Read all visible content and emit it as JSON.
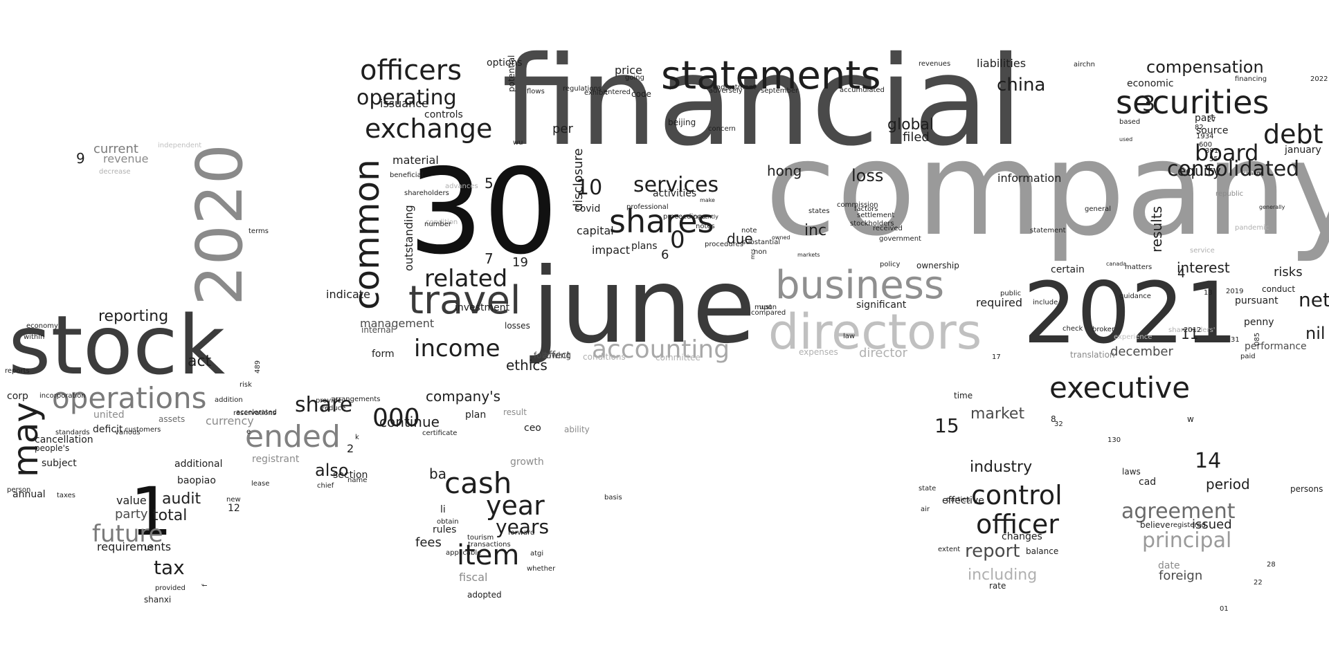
{
  "words": [
    {
      "text": "financial",
      "color": "#4a4a4a"
    },
    {
      "text": "company",
      "color": "#9a9a9a"
    },
    {
      "text": "june",
      "color": "#3a3a3a"
    },
    {
      "text": "30",
      "color": "#111111"
    },
    {
      "text": "2021",
      "color": "#333333"
    },
    {
      "text": "stock",
      "color": "#3c3c3c"
    },
    {
      "text": "2020",
      "color": "#8a8a8a"
    },
    {
      "text": "directors",
      "color": "#c0c0c0"
    },
    {
      "text": "business",
      "color": "#8f8f8f"
    },
    {
      "text": "statements",
      "color": "#1e1e1e"
    },
    {
      "text": "travel",
      "color": "#3a3a3a"
    },
    {
      "text": "securities",
      "color": "#1e1e1e"
    },
    {
      "text": "officers",
      "color": "#1e1e1e"
    },
    {
      "text": "common",
      "color": "#1e1e1e"
    },
    {
      "text": "ended",
      "color": "#808080"
    },
    {
      "text": "operations",
      "color": "#7a7a7a"
    },
    {
      "text": "may",
      "color": "#1e1e1e"
    },
    {
      "text": "1",
      "color": "#111111"
    },
    {
      "text": "executive",
      "color": "#1e1e1e"
    },
    {
      "text": "shares",
      "color": "#1e1e1e"
    },
    {
      "text": "exchange",
      "color": "#1e1e1e"
    },
    {
      "text": "debt",
      "color": "#1e1e1e"
    },
    {
      "text": "consolidated",
      "color": "#1e1e1e"
    },
    {
      "text": "board",
      "color": "#1e1e1e"
    },
    {
      "text": "accounting",
      "color": "#a8a8a8"
    },
    {
      "text": "income",
      "color": "#1e1e1e"
    },
    {
      "text": "related",
      "color": "#1e1e1e"
    },
    {
      "text": "operating",
      "color": "#1e1e1e"
    },
    {
      "text": "services",
      "color": "#1e1e1e"
    },
    {
      "text": "cash",
      "color": "#1e1e1e"
    },
    {
      "text": "year",
      "color": "#1e1e1e"
    },
    {
      "text": "item",
      "color": "#1e1e1e"
    },
    {
      "text": "officer",
      "color": "#1e1e1e"
    },
    {
      "text": "control",
      "color": "#1e1e1e"
    },
    {
      "text": "agreement",
      "color": "#6a6a6a"
    },
    {
      "text": "principal",
      "color": "#9a9a9a"
    },
    {
      "text": "000",
      "color": "#1e1e1e"
    },
    {
      "text": "future",
      "color": "#7a7a7a"
    },
    {
      "text": "compensation",
      "color": "#1e1e1e"
    },
    {
      "text": "china",
      "color": "#1e1e1e"
    },
    {
      "text": "net",
      "color": "#1e1e1e"
    },
    {
      "text": "nil",
      "color": "#1e1e1e"
    },
    {
      "text": "3",
      "color": "#1e1e1e"
    },
    {
      "text": "0",
      "color": "#1e1e1e"
    },
    {
      "text": "10",
      "color": "#1e1e1e"
    },
    {
      "text": "reporting",
      "color": "#1e1e1e"
    },
    {
      "text": "share",
      "color": "#1e1e1e"
    },
    {
      "text": "continue",
      "color": "#1e1e1e"
    },
    {
      "text": "company's",
      "color": "#1e1e1e"
    },
    {
      "text": "years",
      "color": "#1e1e1e"
    },
    {
      "text": "market",
      "color": "#4a4a4a"
    },
    {
      "text": "15",
      "color": "#1e1e1e"
    },
    {
      "text": "14",
      "color": "#1e1e1e"
    },
    {
      "text": "industry",
      "color": "#1e1e1e"
    },
    {
      "text": "report",
      "color": "#4a4a4a"
    },
    {
      "text": "including",
      "color": "#b0b0b0"
    },
    {
      "text": "tax",
      "color": "#1e1e1e"
    },
    {
      "text": "audit",
      "color": "#1e1e1e"
    },
    {
      "text": "total",
      "color": "#1e1e1e"
    },
    {
      "text": "act",
      "color": "#1e1e1e"
    },
    {
      "text": "global",
      "color": "#1e1e1e"
    },
    {
      "text": "loss",
      "color": "#1e1e1e"
    },
    {
      "text": "equity",
      "color": "#1e1e1e"
    },
    {
      "text": "interest",
      "color": "#1e1e1e"
    },
    {
      "text": "results",
      "color": "#1e1e1e"
    },
    {
      "text": "inc",
      "color": "#1e1e1e"
    },
    {
      "text": "hong",
      "color": "#1e1e1e"
    },
    {
      "text": "filed",
      "color": "#1e1e1e"
    },
    {
      "text": "information",
      "color": "#1e1e1e"
    },
    {
      "text": "december",
      "color": "#4a4a4a"
    },
    {
      "text": "risks",
      "color": "#1e1e1e"
    },
    {
      "text": "period",
      "color": "#1e1e1e"
    },
    {
      "text": "issued",
      "color": "#1e1e1e"
    },
    {
      "text": "foreign",
      "color": "#4a4a4a"
    },
    {
      "text": "current",
      "color": "#7a7a7a"
    },
    {
      "text": "revenue",
      "color": "#8a8a8a"
    },
    {
      "text": "9",
      "color": "#1e1e1e"
    },
    {
      "text": "management",
      "color": "#4a4a4a"
    },
    {
      "text": "disclosure",
      "color": "#1e1e1e"
    },
    {
      "text": "outstanding",
      "color": "#1e1e1e"
    },
    {
      "text": "material",
      "color": "#1e1e1e"
    },
    {
      "text": "price",
      "color": "#1e1e1e"
    },
    {
      "text": "options",
      "color": "#1e1e1e"
    },
    {
      "text": "liabilities",
      "color": "#1e1e1e"
    },
    {
      "text": "economic",
      "color": "#1e1e1e"
    },
    {
      "text": "part",
      "color": "#1e1e1e"
    },
    {
      "text": "source",
      "color": "#1e1e1e"
    },
    {
      "text": "january",
      "color": "#1e1e1e"
    },
    {
      "text": "issuance",
      "color": "#1e1e1e"
    },
    {
      "text": "controls",
      "color": "#1e1e1e"
    },
    {
      "text": "per",
      "color": "#1e1e1e"
    },
    {
      "text": "capital",
      "color": "#1e1e1e"
    },
    {
      "text": "impact",
      "color": "#1e1e1e"
    },
    {
      "text": "due",
      "color": "#1e1e1e"
    },
    {
      "text": "activities",
      "color": "#1e1e1e"
    },
    {
      "text": "covid",
      "color": "#1e1e1e"
    },
    {
      "text": "certain",
      "color": "#1e1e1e"
    },
    {
      "text": "required",
      "color": "#1e1e1e"
    },
    {
      "text": "significant",
      "color": "#1e1e1e"
    },
    {
      "text": "pursuant",
      "color": "#1e1e1e"
    },
    {
      "text": "penny",
      "color": "#1e1e1e"
    },
    {
      "text": "performance",
      "color": "#4a4a4a"
    },
    {
      "text": "conduct",
      "color": "#1e1e1e"
    },
    {
      "text": "director",
      "color": "#b0b0b0"
    },
    {
      "text": "expenses",
      "color": "#b0b0b0"
    },
    {
      "text": "committee",
      "color": "#b0b0b0"
    },
    {
      "text": "conditions",
      "color": "#b0b0b0"
    },
    {
      "text": "following",
      "color": "#4a4a4a"
    },
    {
      "text": "affect",
      "color": "#4a4a4a"
    },
    {
      "text": "form",
      "color": "#1e1e1e"
    },
    {
      "text": "investment",
      "color": "#1e1e1e"
    },
    {
      "text": "losses",
      "color": "#1e1e1e"
    },
    {
      "text": "internal",
      "color": "#4a4a4a"
    },
    {
      "text": "united",
      "color": "#8a8a8a"
    },
    {
      "text": "assets",
      "color": "#6a6a6a"
    },
    {
      "text": "currency",
      "color": "#8a8a8a"
    },
    {
      "text": "registrant",
      "color": "#8a8a8a"
    },
    {
      "text": "section",
      "color": "#1e1e1e"
    },
    {
      "text": "2",
      "color": "#1e1e1e"
    },
    {
      "text": "also",
      "color": "#1e1e1e"
    },
    {
      "text": "corp",
      "color": "#1e1e1e"
    },
    {
      "text": "deficit",
      "color": "#1e1e1e"
    },
    {
      "text": "cancellation",
      "color": "#1e1e1e"
    },
    {
      "text": "people's",
      "color": "#1e1e1e"
    },
    {
      "text": "subject",
      "color": "#1e1e1e"
    },
    {
      "text": "annual",
      "color": "#1e1e1e"
    },
    {
      "text": "additional",
      "color": "#1e1e1e"
    },
    {
      "text": "baopiao",
      "color": "#1e1e1e"
    },
    {
      "text": "value",
      "color": "#1e1e1e"
    },
    {
      "text": "12",
      "color": "#1e1e1e"
    },
    {
      "text": "party",
      "color": "#4a4a4a"
    },
    {
      "text": "requirements",
      "color": "#1e1e1e"
    },
    {
      "text": "us",
      "color": "#1e1e1e"
    },
    {
      "text": "ba",
      "color": "#1e1e1e"
    },
    {
      "text": "fees",
      "color": "#1e1e1e"
    },
    {
      "text": "rules",
      "color": "#1e1e1e"
    },
    {
      "text": "li",
      "color": "#1e1e1e"
    },
    {
      "text": "growth",
      "color": "#8a8a8a"
    },
    {
      "text": "plan",
      "color": "#1e1e1e"
    },
    {
      "text": "result",
      "color": "#8a8a8a"
    },
    {
      "text": "ceo",
      "color": "#1e1e1e"
    },
    {
      "text": "ability",
      "color": "#8a8a8a"
    },
    {
      "text": "fiscal",
      "color": "#8a8a8a"
    },
    {
      "text": "adopted",
      "color": "#1e1e1e"
    },
    {
      "text": "time",
      "color": "#1e1e1e"
    },
    {
      "text": "effective",
      "color": "#1e1e1e"
    },
    {
      "text": "changes",
      "color": "#1e1e1e"
    },
    {
      "text": "balance",
      "color": "#1e1e1e"
    },
    {
      "text": "rate",
      "color": "#1e1e1e"
    },
    {
      "text": "cad",
      "color": "#1e1e1e"
    },
    {
      "text": "laws",
      "color": "#1e1e1e"
    },
    {
      "text": "persons",
      "color": "#1e1e1e"
    },
    {
      "text": "believe",
      "color": "#1e1e1e"
    },
    {
      "text": "date",
      "color": "#8a8a8a"
    },
    {
      "text": "w",
      "color": "#1e1e1e"
    },
    {
      "text": "8",
      "color": "#1e1e1e"
    },
    {
      "text": "11",
      "color": "#1e1e1e"
    },
    {
      "text": "4",
      "color": "#1e1e1e"
    },
    {
      "text": "5",
      "color": "#1e1e1e"
    },
    {
      "text": "7",
      "color": "#1e1e1e"
    },
    {
      "text": "19",
      "color": "#1e1e1e"
    },
    {
      "text": "6",
      "color": "#1e1e1e"
    },
    {
      "text": "ethics",
      "color": "#1e1e1e"
    },
    {
      "text": "independent",
      "color": "#c0c0c0"
    },
    {
      "text": "decrease",
      "color": "#b0b0b0"
    },
    {
      "text": "shanxi",
      "color": "#1e1e1e"
    },
    {
      "text": "republic",
      "color": "#8a8a8a"
    },
    {
      "text": "translation",
      "color": "#8a8a8a"
    },
    {
      "text": "paid",
      "color": "#1e1e1e"
    },
    {
      "text": "code",
      "color": "#1e1e1e"
    },
    {
      "text": "beijing",
      "color": "#1e1e1e"
    },
    {
      "text": "concern",
      "color": "#1e1e1e"
    },
    {
      "text": "adjustment",
      "color": "#1e1e1e"
    },
    {
      "text": "september",
      "color": "#1e1e1e"
    },
    {
      "text": "accumulated",
      "color": "#1e1e1e"
    },
    {
      "text": "revenues",
      "color": "#1e1e1e"
    },
    {
      "text": "airchn",
      "color": "#1e1e1e"
    },
    {
      "text": "going",
      "color": "#1e1e1e"
    },
    {
      "text": "potential",
      "color": "#1e1e1e"
    },
    {
      "text": "flows",
      "color": "#1e1e1e"
    },
    {
      "text": "regulations",
      "color": "#1e1e1e"
    },
    {
      "text": "exhibit",
      "color": "#1e1e1e"
    },
    {
      "text": "entered",
      "color": "#1e1e1e"
    },
    {
      "text": "adversely",
      "color": "#1e1e1e"
    },
    {
      "text": "financing",
      "color": "#1e1e1e"
    },
    {
      "text": "based",
      "color": "#1e1e1e"
    },
    {
      "text": "used",
      "color": "#1e1e1e"
    },
    {
      "text": "change",
      "color": "#1e1e1e"
    },
    {
      "text": "generally",
      "color": "#1e1e1e"
    },
    {
      "text": "general",
      "color": "#1e1e1e"
    },
    {
      "text": "matters",
      "color": "#1e1e1e"
    },
    {
      "text": "canada",
      "color": "#1e1e1e"
    },
    {
      "text": "ownership",
      "color": "#1e1e1e"
    },
    {
      "text": "factors",
      "color": "#1e1e1e"
    },
    {
      "text": "commission",
      "color": "#1e1e1e"
    },
    {
      "text": "states",
      "color": "#1e1e1e"
    },
    {
      "text": "procedures",
      "color": "#1e1e1e"
    },
    {
      "text": "non",
      "color": "#1e1e1e"
    },
    {
      "text": "stockholders",
      "color": "#1e1e1e"
    },
    {
      "text": "mrs",
      "color": "#1e1e1e"
    },
    {
      "text": "make",
      "color": "#1e1e1e"
    },
    {
      "text": "currently",
      "color": "#1e1e1e"
    },
    {
      "text": "markets",
      "color": "#1e1e1e"
    },
    {
      "text": "owned",
      "color": "#1e1e1e"
    },
    {
      "text": "wu",
      "color": "#1e1e1e"
    },
    {
      "text": "beneficial",
      "color": "#1e1e1e"
    },
    {
      "text": "shareholders",
      "color": "#1e1e1e"
    },
    {
      "text": "condition",
      "color": "#b0b0b0"
    },
    {
      "text": "advances",
      "color": "#b0b0b0"
    },
    {
      "text": "number",
      "color": "#1e1e1e"
    },
    {
      "text": "terms",
      "color": "#1e1e1e"
    },
    {
      "text": "addition",
      "color": "#1e1e1e"
    },
    {
      "text": "incorporation",
      "color": "#1e1e1e"
    },
    {
      "text": "economy",
      "color": "#1e1e1e"
    },
    {
      "text": "within",
      "color": "#1e1e1e"
    },
    {
      "text": "arrangements",
      "color": "#1e1e1e"
    },
    {
      "text": "name",
      "color": "#1e1e1e"
    },
    {
      "text": "lease",
      "color": "#1e1e1e"
    },
    {
      "text": "chief",
      "color": "#1e1e1e"
    },
    {
      "text": "air",
      "color": "#1e1e1e"
    },
    {
      "text": "state",
      "color": "#1e1e1e"
    },
    {
      "text": "extent",
      "color": "#1e1e1e"
    },
    {
      "text": "parties",
      "color": "#1e1e1e"
    },
    {
      "text": "registered",
      "color": "#1e1e1e"
    },
    {
      "text": "applicable",
      "color": "#1e1e1e"
    },
    {
      "text": "tourism",
      "color": "#1e1e1e"
    },
    {
      "text": "transactions",
      "color": "#1e1e1e"
    },
    {
      "text": "obtain",
      "color": "#1e1e1e"
    },
    {
      "text": "atgi",
      "color": "#1e1e1e"
    },
    {
      "text": "forward",
      "color": "#1e1e1e"
    },
    {
      "text": "whether",
      "color": "#1e1e1e"
    },
    {
      "text": "basis",
      "color": "#1e1e1e"
    },
    {
      "text": "certificate",
      "color": "#1e1e1e"
    },
    {
      "text": "k",
      "color": "#1e1e1e"
    },
    {
      "text": "reduce",
      "color": "#1e1e1e"
    },
    {
      "text": "provide",
      "color": "#1e1e1e"
    },
    {
      "text": "risk",
      "color": "#1e1e1e"
    },
    {
      "text": "accelerated",
      "color": "#1e1e1e"
    },
    {
      "text": "reservations",
      "color": "#1e1e1e"
    },
    {
      "text": "e",
      "color": "#1e1e1e"
    },
    {
      "text": "f",
      "color": "#1e1e1e"
    },
    {
      "text": "new",
      "color": "#1e1e1e"
    },
    {
      "text": "provided",
      "color": "#1e1e1e"
    },
    {
      "text": "taxes",
      "color": "#1e1e1e"
    },
    {
      "text": "person",
      "color": "#1e1e1e"
    },
    {
      "text": "reports",
      "color": "#1e1e1e"
    },
    {
      "text": "various",
      "color": "#1e1e1e"
    },
    {
      "text": "customers",
      "color": "#1e1e1e"
    },
    {
      "text": "standards",
      "color": "#1e1e1e"
    },
    {
      "text": "plans",
      "color": "#1e1e1e"
    },
    {
      "text": "indicate",
      "color": "#1e1e1e"
    },
    {
      "text": "professional",
      "color": "#1e1e1e"
    },
    {
      "text": "proceedings",
      "color": "#1e1e1e"
    },
    {
      "text": "notes",
      "color": "#1e1e1e"
    },
    {
      "text": "note",
      "color": "#1e1e1e"
    },
    {
      "text": "substantial",
      "color": "#1e1e1e"
    },
    {
      "text": "compared",
      "color": "#1e1e1e"
    },
    {
      "text": "upon",
      "color": "#1e1e1e"
    },
    {
      "text": "must",
      "color": "#1e1e1e"
    },
    {
      "text": "law",
      "color": "#1e1e1e"
    },
    {
      "text": "government",
      "color": "#1e1e1e"
    },
    {
      "text": "policy",
      "color": "#1e1e1e"
    },
    {
      "text": "received",
      "color": "#1e1e1e"
    },
    {
      "text": "settlement",
      "color": "#1e1e1e"
    },
    {
      "text": "statement",
      "color": "#1e1e1e"
    },
    {
      "text": "include",
      "color": "#1e1e1e"
    },
    {
      "text": "public",
      "color": "#1e1e1e"
    },
    {
      "text": "check",
      "color": "#1e1e1e"
    },
    {
      "text": "broker",
      "color": "#1e1e1e"
    },
    {
      "text": "guidance",
      "color": "#1e1e1e"
    },
    {
      "text": "pandemic",
      "color": "#b0b0b0"
    },
    {
      "text": "service",
      "color": "#b0b0b0"
    },
    {
      "text": "experience",
      "color": "#c0c0c0"
    },
    {
      "text": "shareholders'",
      "color": "#b0b0b0"
    },
    {
      "text": "2012",
      "color": "#1e1e1e"
    },
    {
      "text": "31",
      "color": "#1e1e1e"
    },
    {
      "text": "13",
      "color": "#1e1e1e"
    },
    {
      "text": "2019",
      "color": "#1e1e1e"
    },
    {
      "text": "27",
      "color": "#1e1e1e"
    },
    {
      "text": "82",
      "color": "#1e1e1e"
    },
    {
      "text": "1934",
      "color": "#1e1e1e"
    },
    {
      "text": "600",
      "color": "#1e1e1e"
    },
    {
      "text": "391",
      "color": "#1e1e1e"
    },
    {
      "text": "55",
      "color": "#1e1e1e"
    },
    {
      "text": "2022",
      "color": "#1e1e1e"
    },
    {
      "text": "32",
      "color": "#1e1e1e"
    },
    {
      "text": "130",
      "color": "#1e1e1e"
    },
    {
      "text": "17",
      "color": "#1e1e1e"
    },
    {
      "text": "01",
      "color": "#1e1e1e"
    },
    {
      "text": "28",
      "color": "#1e1e1e"
    },
    {
      "text": "085",
      "color": "#1e1e1e"
    },
    {
      "text": "489",
      "color": "#1e1e1e"
    },
    {
      "text": "22",
      "color": "#1e1e1e"
    }
  ]
}
